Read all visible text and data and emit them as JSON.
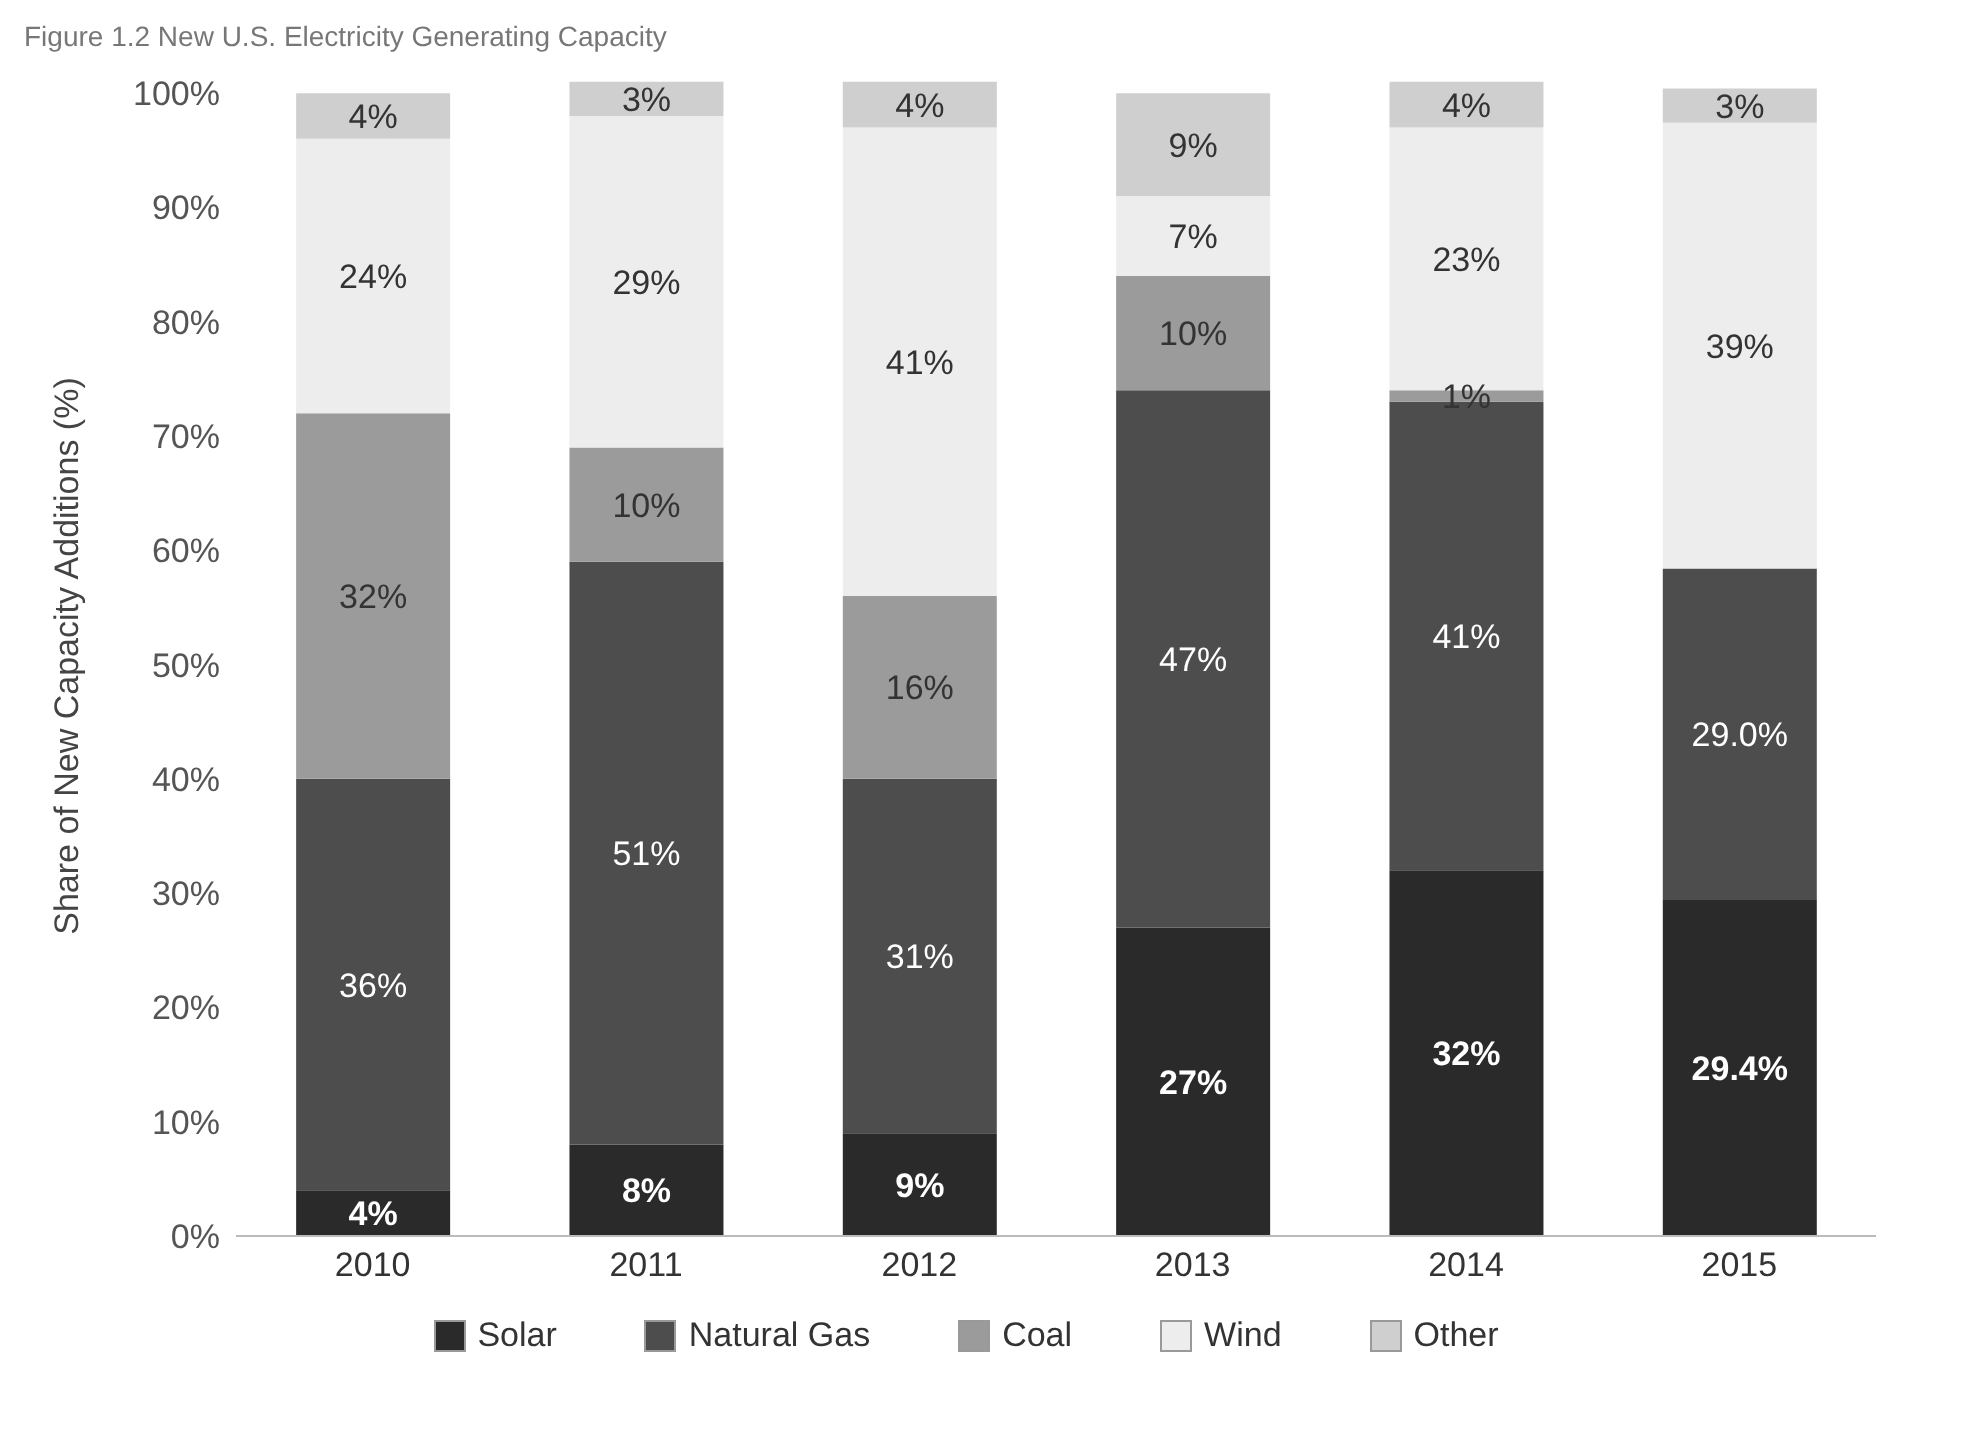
{
  "chart_data": {
    "type": "bar",
    "stacked": true,
    "title": "Figure 1.2 New U.S. Electricity Generating Capacity",
    "ylabel": "Share of New Capacity Additions (%)",
    "categories": [
      "2010",
      "2011",
      "2012",
      "2013",
      "2014",
      "2015"
    ],
    "series": [
      {
        "name": "Solar",
        "color": "#2a2a2a",
        "values": [
          4,
          8,
          9,
          27,
          32,
          29.4
        ],
        "value_labels": [
          "4%",
          "8%",
          "9%",
          "27%",
          "32%",
          "29.4%"
        ]
      },
      {
        "name": "Natural Gas",
        "color": "#4d4d4d",
        "values": [
          36,
          51,
          31,
          47,
          41,
          29.0
        ],
        "value_labels": [
          "36%",
          "51%",
          "31%",
          "47%",
          "41%",
          "29.0%"
        ]
      },
      {
        "name": "Coal",
        "color": "#9b9b9b",
        "values": [
          32,
          10,
          16,
          10,
          1,
          null
        ],
        "value_labels": [
          "32%",
          "10%",
          "16%",
          "10%",
          "1%",
          null
        ]
      },
      {
        "name": "Wind",
        "color": "#ededed",
        "values": [
          24,
          29,
          41,
          7,
          23,
          39
        ],
        "value_labels": [
          "24%",
          "29%",
          "41%",
          "7%",
          "23%",
          "39%"
        ]
      },
      {
        "name": "Other",
        "color": "#cfcfcf",
        "values": [
          4,
          3,
          4,
          9,
          4,
          3
        ],
        "value_labels": [
          "4%",
          "3%",
          "4%",
          "9%",
          "4%",
          "3%"
        ]
      }
    ],
    "ylim": [
      0,
      101.5
    ],
    "yticks": [
      {
        "value": 0,
        "label": "0%"
      },
      {
        "value": 10,
        "label": "10%"
      },
      {
        "value": 20,
        "label": "20%"
      },
      {
        "value": 30,
        "label": "30%"
      },
      {
        "value": 40,
        "label": "40%"
      },
      {
        "value": 50,
        "label": "50%"
      },
      {
        "value": 60,
        "label": "60%"
      },
      {
        "value": 70,
        "label": "70%"
      },
      {
        "value": 80,
        "label": "80%"
      },
      {
        "value": 90,
        "label": "90%"
      },
      {
        "value": 100,
        "label": "100%"
      }
    ],
    "grid": false,
    "legend": "bottom"
  }
}
